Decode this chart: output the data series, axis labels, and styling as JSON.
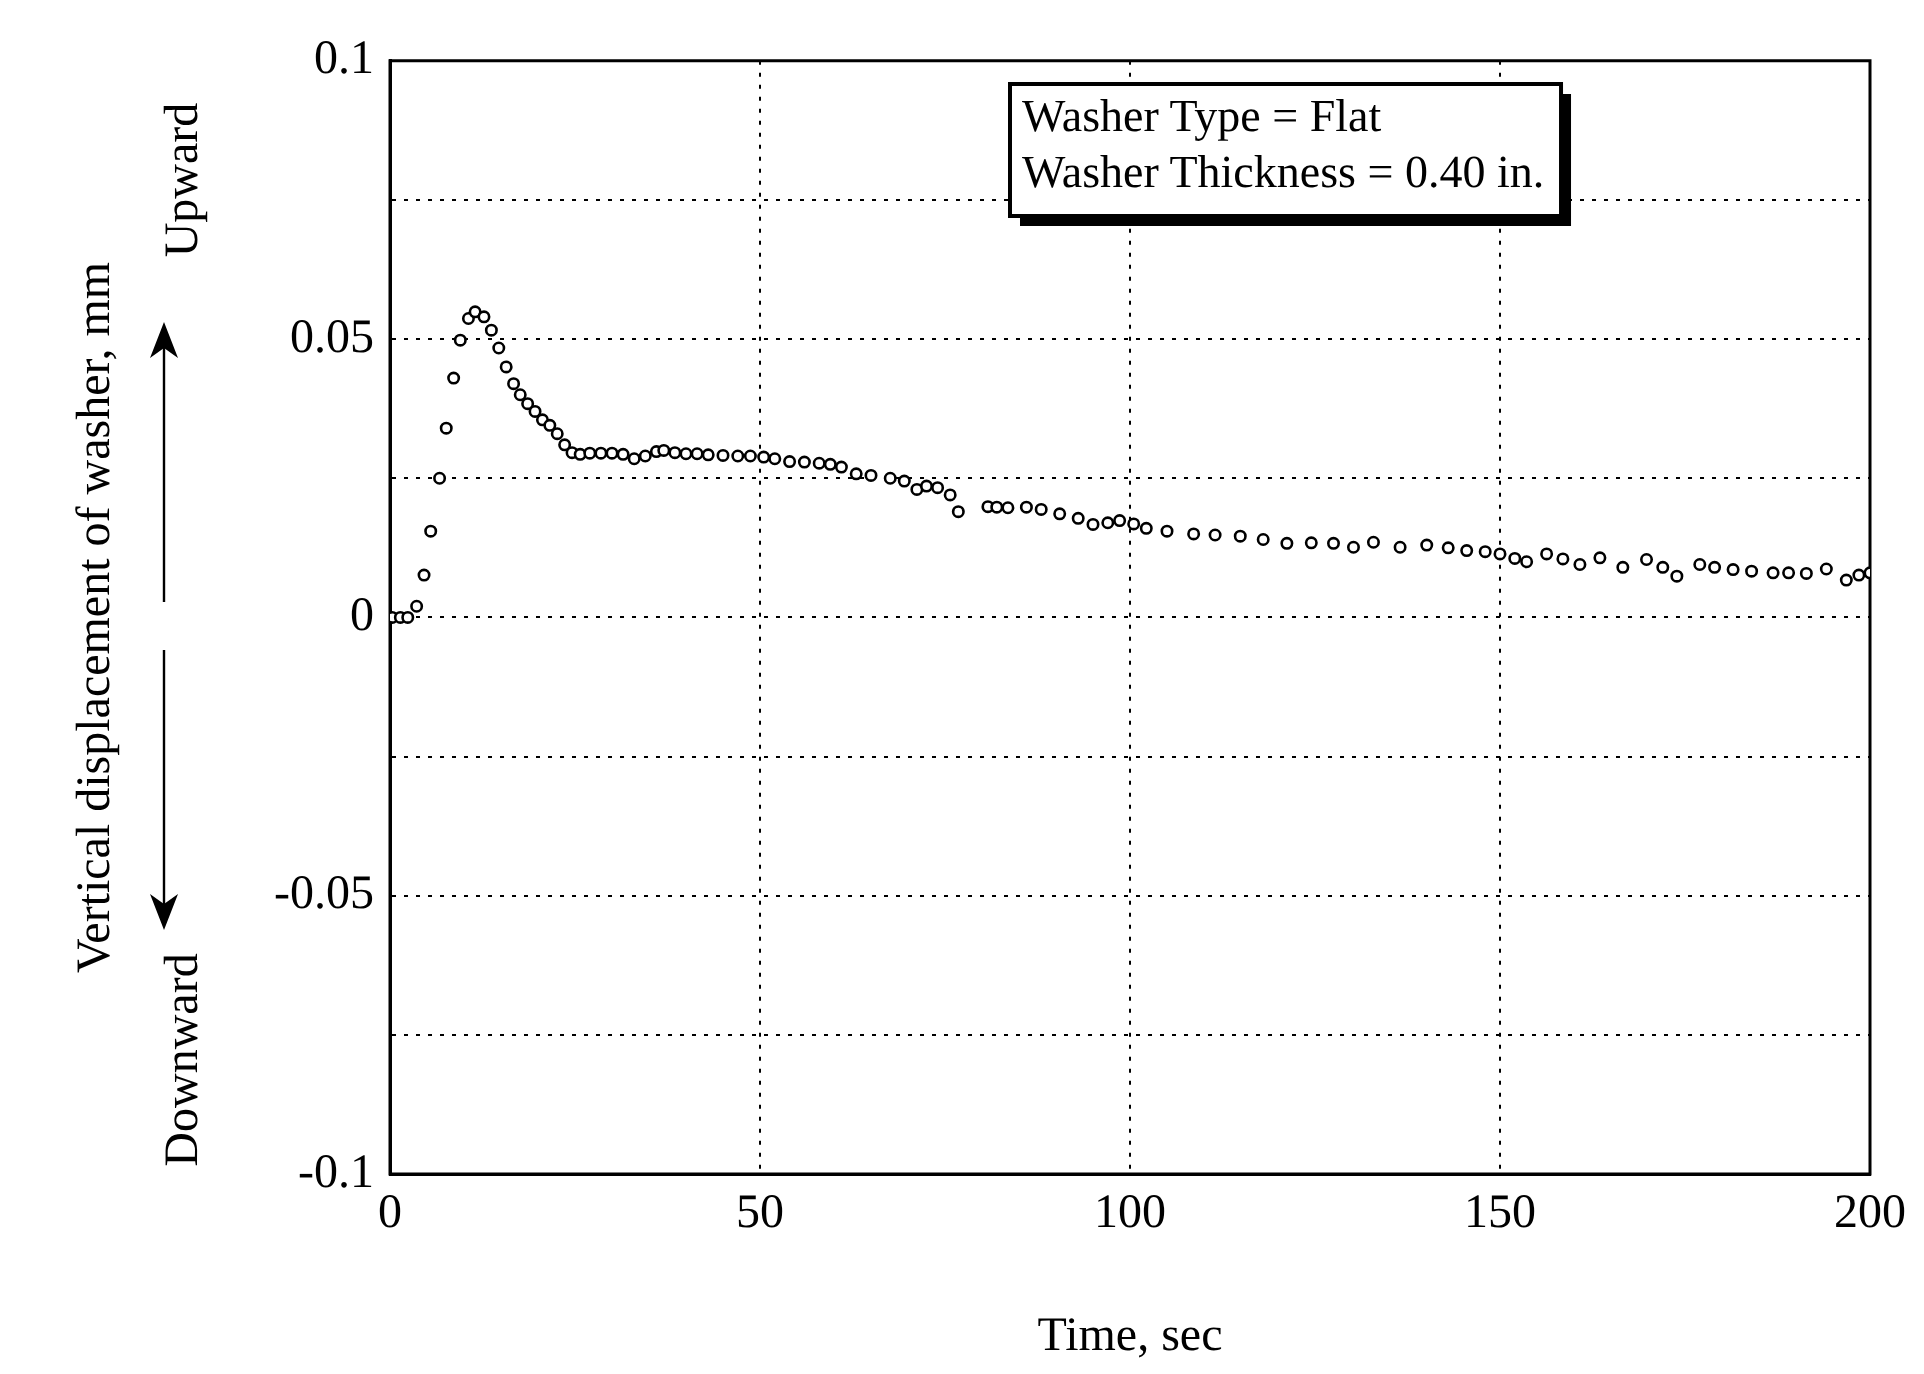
{
  "chart_data": {
    "type": "scatter",
    "xlabel": "Time, sec",
    "ylabel": "Vertical displacement of washer, mm",
    "annotations": [
      "Washer Type = Flat",
      "Washer Thickness = 0.40 in.",
      "Upward",
      "Downward"
    ],
    "xlim": [
      0,
      200
    ],
    "xticks": [
      0,
      50,
      100,
      150,
      200
    ],
    "ylim": [
      -0.1,
      0.1
    ],
    "yticks": [
      -0.1,
      {
        "value": -0.075,
        "label": null
      },
      -0.05,
      {
        "value": -0.025,
        "label": null
      },
      0,
      {
        "value": 0.025,
        "label": null
      },
      0.05,
      {
        "value": 0.075,
        "label": null
      },
      0.1
    ],
    "grid": true,
    "marker": "circle",
    "series": [
      {
        "color": "#000000",
        "x": [
          0.3,
          1.4,
          2.4,
          3.6,
          4.6,
          5.5,
          6.7,
          7.6,
          8.6,
          9.5,
          10.6,
          11.5,
          12.7,
          13.7,
          14.7,
          15.7,
          16.7,
          17.6,
          18.6,
          19.6,
          20.6,
          21.6,
          22.6,
          23.6,
          24.6,
          25.7,
          27,
          28.5,
          30,
          31.5,
          33,
          34.5,
          36,
          37,
          38.5,
          40,
          41.5,
          43,
          45,
          47,
          48.7,
          50.5,
          52,
          54,
          56,
          58,
          59.5,
          61,
          63,
          65,
          67.6,
          69.5,
          71.2,
          72.5,
          74,
          75.7,
          76.8,
          80.8,
          82,
          83.5,
          86,
          88,
          90.5,
          93,
          95,
          97,
          98.6,
          100.5,
          102.2,
          105,
          108.6,
          111.5,
          114.9,
          118,
          121.2,
          124.5,
          127.5,
          130.2,
          132.9,
          136.5,
          140.1,
          143,
          145.5,
          148,
          150,
          152,
          153.6,
          156.3,
          158.5,
          160.8,
          163.5,
          166.6,
          169.8,
          172,
          173.9,
          177,
          179,
          181.5,
          184,
          186.9,
          189,
          191.4,
          194.1,
          196.8,
          198.5,
          200
        ],
        "values": [
          0,
          0,
          0,
          0.002,
          0.0076,
          0.0155,
          0.025,
          0.034,
          0.043,
          0.0498,
          0.0537,
          0.0549,
          0.054,
          0.0516,
          0.0484,
          0.045,
          0.042,
          0.04,
          0.0384,
          0.037,
          0.0355,
          0.0345,
          0.033,
          0.031,
          0.0296,
          0.0293,
          0.0295,
          0.0295,
          0.0295,
          0.0293,
          0.0285,
          0.029,
          0.0298,
          0.03,
          0.0296,
          0.0294,
          0.0294,
          0.0292,
          0.0291,
          0.029,
          0.029,
          0.0288,
          0.0285,
          0.028,
          0.0279,
          0.0277,
          0.0275,
          0.027,
          0.0258,
          0.0255,
          0.025,
          0.0245,
          0.023,
          0.0236,
          0.0233,
          0.022,
          0.019,
          0.0199,
          0.0198,
          0.0197,
          0.0198,
          0.0194,
          0.0186,
          0.0178,
          0.0167,
          0.017,
          0.0174,
          0.0168,
          0.016,
          0.0155,
          0.015,
          0.0148,
          0.0146,
          0.014,
          0.0133,
          0.0134,
          0.0133,
          0.0126,
          0.0135,
          0.0126,
          0.013,
          0.0125,
          0.012,
          0.0118,
          0.0114,
          0.0106,
          0.01,
          0.0114,
          0.0105,
          0.0095,
          0.0107,
          0.009,
          0.0104,
          0.009,
          0.0074,
          0.0095,
          0.009,
          0.0086,
          0.0083,
          0.008,
          0.008,
          0.0079,
          0.0087,
          0.0067,
          0.0076,
          0.008
        ]
      }
    ]
  }
}
